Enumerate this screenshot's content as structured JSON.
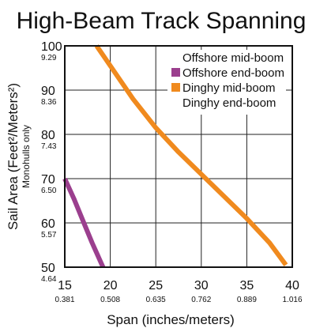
{
  "chart_data": {
    "type": "line",
    "title": "High-Beam Track Spanning",
    "ylabel": "Sail Area (Feet²/Meters²)",
    "ylabel_note": "Monohulls only",
    "xlabel": "Span (inches/meters)",
    "xlim": [
      15,
      40
    ],
    "ylim": [
      50,
      100
    ],
    "x_ticks": [
      {
        "value": 15,
        "label": "15",
        "sub": "0.381"
      },
      {
        "value": 20,
        "label": "20",
        "sub": "0.508"
      },
      {
        "value": 25,
        "label": "25",
        "sub": "0.635"
      },
      {
        "value": 30,
        "label": "30",
        "sub": "0.762"
      },
      {
        "value": 35,
        "label": "35",
        "sub": "0.889"
      },
      {
        "value": 40,
        "label": "40",
        "sub": "1.016"
      }
    ],
    "y_ticks": [
      {
        "value": 50,
        "label": "50",
        "sub": "4.64"
      },
      {
        "value": 60,
        "label": "60",
        "sub": "5.57"
      },
      {
        "value": 70,
        "label": "70",
        "sub": "6.50"
      },
      {
        "value": 80,
        "label": "80",
        "sub": "7.43"
      },
      {
        "value": 90,
        "label": "90",
        "sub": "8.36"
      },
      {
        "value": 100,
        "label": "100",
        "sub": "9.29"
      }
    ],
    "grid": true,
    "legend_position": "top-right",
    "legend": [
      {
        "label": "Offshore mid-boom",
        "swatch": false
      },
      {
        "label": "Offshore end-boom",
        "swatch": true,
        "color": "#9b3f8e"
      },
      {
        "label": "Dinghy mid-boom",
        "swatch": true,
        "color": "#f08a1e"
      },
      {
        "label": "Dinghy end-boom",
        "swatch": false
      }
    ],
    "series": [
      {
        "color": "#9b3f8e",
        "points": [
          [
            15.0,
            70.0
          ],
          [
            16.0,
            65.5
          ],
          [
            17.0,
            60.5
          ],
          [
            18.0,
            55.5
          ],
          [
            19.2,
            50.0
          ]
        ]
      },
      {
        "color": "#f08a1e",
        "points": [
          [
            18.5,
            100.0
          ],
          [
            20.0,
            95.5
          ],
          [
            22.5,
            88.0
          ],
          [
            25.0,
            81.5
          ],
          [
            27.5,
            76.0
          ],
          [
            30.0,
            71.0
          ],
          [
            32.5,
            66.0
          ],
          [
            35.0,
            61.0
          ],
          [
            37.5,
            55.5
          ],
          [
            39.3,
            50.5
          ]
        ]
      }
    ]
  }
}
